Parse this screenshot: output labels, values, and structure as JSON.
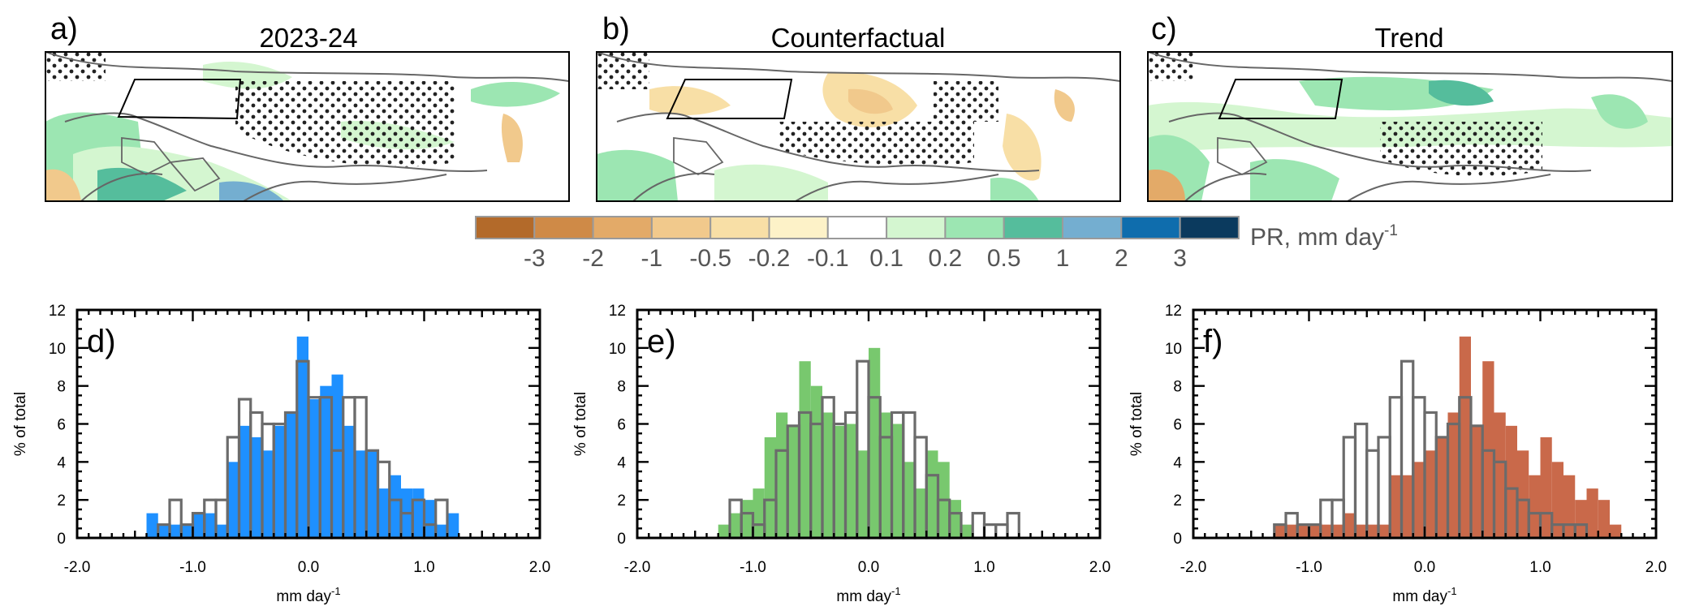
{
  "figure": {
    "map_panels": [
      {
        "letter": "a)",
        "title": "2023-24"
      },
      {
        "letter": "b)",
        "title": "Counterfactual"
      },
      {
        "letter": "c)",
        "title": "Trend"
      }
    ],
    "colorbar": {
      "label": "PR, mm day",
      "label_sup": "-1",
      "ticks": [
        "-3",
        "-2",
        "-1",
        "-0.5",
        "-0.2",
        "-0.1",
        "0.1",
        "0.2",
        "0.5",
        "1",
        "2",
        "3"
      ],
      "colors": [
        "#b36a2a",
        "#cf8a47",
        "#e3aa68",
        "#f1c98c",
        "#f8dfa6",
        "#fdf2c8",
        "#ffffff",
        "#d4f6d0",
        "#9ce6b2",
        "#55bd9c",
        "#74aed0",
        "#0f6dad",
        "#0b3a5e"
      ]
    }
  },
  "chart_data": [
    {
      "type": "bar",
      "panel": "d)",
      "xlabel": "mm day",
      "xlabel_sup": "-1",
      "ylabel": "% of total",
      "xlim": [
        -2.0,
        2.0
      ],
      "ylim": [
        0,
        12
      ],
      "xticks": [
        "-2.0",
        "-1.0",
        "0.0",
        "1.0",
        "2.0"
      ],
      "yticks": [
        "0",
        "2",
        "4",
        "6",
        "8",
        "10",
        "12"
      ],
      "bin_start": -1.4,
      "bin_width": 0.1,
      "filled_color": "#1e90ff",
      "series": [
        {
          "name": "filled",
          "values": [
            1.3,
            0.7,
            0.7,
            0.7,
            1.3,
            1.3,
            0.7,
            4.0,
            5.9,
            5.3,
            4.6,
            5.9,
            6.6,
            10.6,
            7.3,
            8.0,
            8.6,
            5.9,
            4.6,
            4.6,
            2.6,
            3.3,
            2.6,
            2.6,
            2.0,
            0.7,
            1.3
          ]
        },
        {
          "name": "outline",
          "values": [
            0,
            0.7,
            2.0,
            0.7,
            1.3,
            2.0,
            2.0,
            5.3,
            7.3,
            6.6,
            6.0,
            6.0,
            6.6,
            9.3,
            7.4,
            7.4,
            4.6,
            7.4,
            7.4,
            4.6,
            4.0,
            2.0,
            1.3,
            2.0,
            0.7,
            2.0,
            0
          ]
        }
      ]
    },
    {
      "type": "bar",
      "panel": "e)",
      "xlabel": "mm day",
      "xlabel_sup": "-1",
      "ylabel": "% of total",
      "xlim": [
        -2.0,
        2.0
      ],
      "ylim": [
        0,
        12
      ],
      "xticks": [
        "-2.0",
        "-1.0",
        "0.0",
        "1.0",
        "2.0"
      ],
      "yticks": [
        "0",
        "2",
        "4",
        "6",
        "8",
        "10",
        "12"
      ],
      "bin_start": -1.3,
      "bin_width": 0.1,
      "filled_color": "#78c86e",
      "series": [
        {
          "name": "filled",
          "values": [
            0.7,
            1.3,
            2.0,
            2.6,
            5.3,
            6.6,
            5.9,
            9.3,
            8.0,
            6.6,
            5.9,
            6.0,
            4.6,
            10.0,
            6.6,
            6.0,
            4.0,
            2.6,
            4.6,
            4.0,
            2.0,
            0.7
          ]
        },
        {
          "name": "outline",
          "values": [
            0,
            2.0,
            1.3,
            0.7,
            2.0,
            4.6,
            5.9,
            6.6,
            6.0,
            7.4,
            6.0,
            6.6,
            9.3,
            7.4,
            5.3,
            6.6,
            6.6,
            5.3,
            3.3,
            2.0,
            1.3,
            0,
            1.3,
            0.7,
            0.7,
            1.3
          ]
        }
      ]
    },
    {
      "type": "bar",
      "panel": "f)",
      "xlabel": "mm day",
      "xlabel_sup": "-1",
      "ylabel": "% of total",
      "xlim": [
        -2.0,
        2.0
      ],
      "ylim": [
        0,
        12
      ],
      "xticks": [
        "-2.0",
        "-1.0",
        "0.0",
        "1.0",
        "2.0"
      ],
      "yticks": [
        "0",
        "2",
        "4",
        "6",
        "8",
        "10",
        "12"
      ],
      "bin_start": -1.3,
      "bin_width": 0.1,
      "filled_color": "#c9694a",
      "series": [
        {
          "name": "filled",
          "values": [
            0.7,
            0.7,
            0.7,
            0.7,
            0.7,
            0.7,
            1.3,
            0.7,
            0.7,
            0.7,
            3.3,
            3.3,
            4.0,
            4.6,
            5.3,
            6.6,
            10.6,
            5.9,
            9.3,
            6.6,
            5.9,
            4.6,
            3.3,
            5.3,
            4.0,
            3.3,
            2.0,
            2.6,
            2.0,
            0.7
          ]
        },
        {
          "name": "outline",
          "values": [
            0.7,
            1.3,
            0.7,
            0.7,
            2.0,
            2.0,
            5.3,
            6.0,
            4.6,
            5.3,
            7.4,
            9.3,
            7.4,
            6.6,
            5.3,
            6.0,
            7.4,
            5.9,
            4.6,
            4.0,
            2.6,
            2.0,
            1.3,
            1.3,
            0.7,
            0.7,
            0.7
          ]
        }
      ]
    }
  ]
}
